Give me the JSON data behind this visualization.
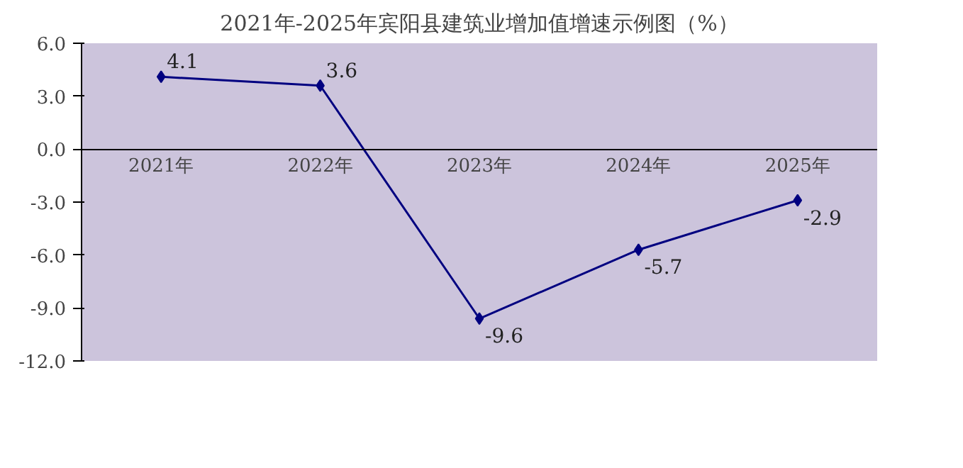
{
  "chart_data": {
    "type": "line",
    "title": "2021年-2025年宾阳县建筑业增加值增速示例图（%）",
    "categories": [
      "2021年",
      "2022年",
      "2023年",
      "2024年",
      "2025年"
    ],
    "series": [
      {
        "color": "#000080",
        "values": [
          4.1,
          3.6,
          -9.6,
          -5.7,
          -2.9
        ]
      }
    ],
    "ylim": [
      -12,
      6
    ],
    "yticks": [
      {
        "value": -12,
        "label": "-12.0"
      },
      {
        "value": -9,
        "label": "-9.0"
      },
      {
        "value": -6,
        "label": "-6.0"
      },
      {
        "value": -3,
        "label": "-3.0"
      },
      {
        "value": 0,
        "label": "0.0"
      },
      {
        "value": 3,
        "label": "3.0"
      },
      {
        "value": 6,
        "label": "6.0"
      }
    ],
    "marker": "diamond",
    "line_style": "solid",
    "data_labels": true
  }
}
